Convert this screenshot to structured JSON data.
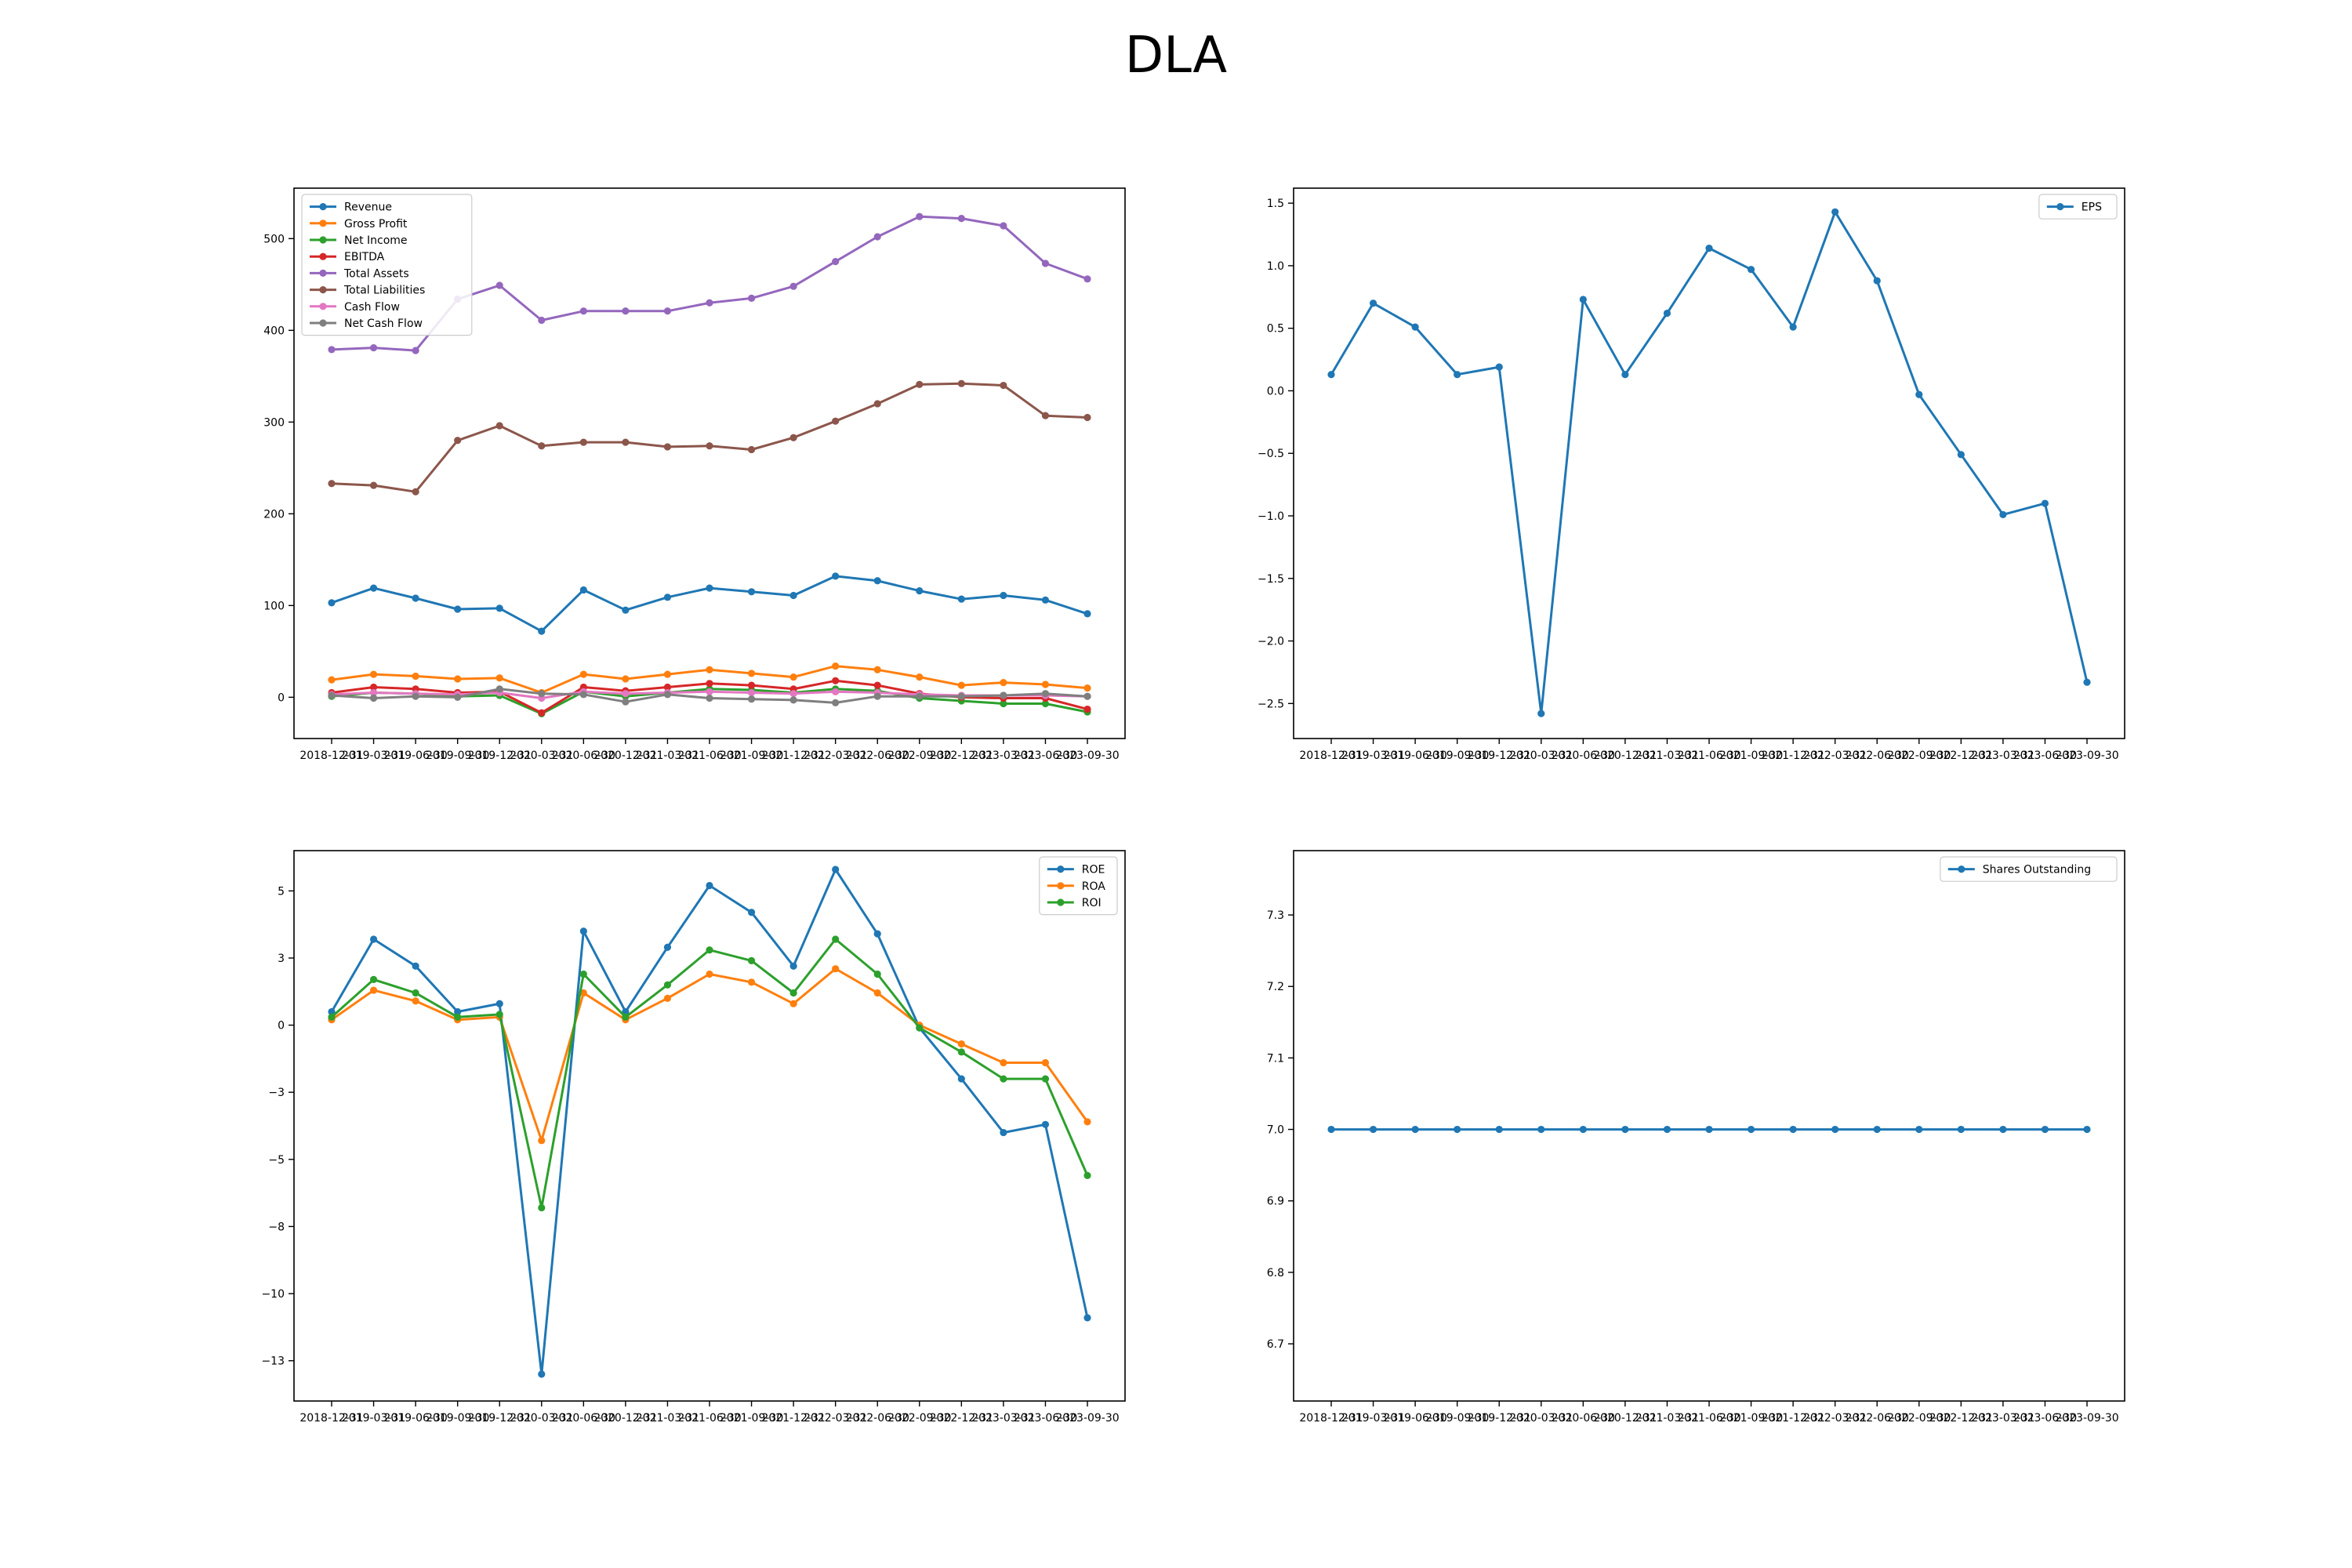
{
  "page_title": "DLA",
  "dates": [
    "2018-12-31",
    "2019-03-31",
    "2019-06-30",
    "2019-09-30",
    "2019-12-31",
    "2020-03-31",
    "2020-06-30",
    "2020-12-31",
    "2021-03-31",
    "2021-06-30",
    "2021-09-30",
    "2021-12-31",
    "2022-03-31",
    "2022-06-30",
    "2022-09-30",
    "2022-12-31",
    "2023-03-31",
    "2023-06-30",
    "2023-09-30"
  ],
  "chart_data": [
    {
      "type": "line",
      "ylim": [
        -45,
        555
      ],
      "yticks": [
        0,
        100,
        200,
        300,
        400,
        500
      ],
      "legend": "upper left",
      "series": [
        {
          "name": "Revenue",
          "color": "#1f77b4",
          "values": [
            103,
            119,
            108,
            96,
            97,
            72,
            117,
            95,
            109,
            119,
            115,
            111,
            132,
            127,
            116,
            107,
            111,
            106,
            91
          ]
        },
        {
          "name": "Gross Profit",
          "color": "#ff7f0e",
          "values": [
            19,
            25,
            23,
            20,
            21,
            5,
            25,
            20,
            25,
            30,
            26,
            22,
            34,
            30,
            22,
            13,
            16,
            14,
            10
          ]
        },
        {
          "name": "Net Income",
          "color": "#2ca02c",
          "values": [
            1,
            5,
            4,
            1,
            2,
            -18,
            6,
            1,
            5,
            9,
            8,
            5,
            9,
            7,
            -1,
            -4,
            -7,
            -7,
            -16
          ]
        },
        {
          "name": "EBITDA",
          "color": "#d62728",
          "values": [
            5,
            11,
            9,
            5,
            6,
            -17,
            11,
            7,
            11,
            15,
            13,
            9,
            18,
            13,
            4,
            0,
            -1,
            -1,
            -13
          ]
        },
        {
          "name": "Total Assets",
          "color": "#9467bd",
          "values": [
            379,
            381,
            378,
            434,
            449,
            411,
            421,
            421,
            421,
            430,
            435,
            448,
            475,
            502,
            524,
            522,
            514,
            473,
            456
          ]
        },
        {
          "name": "Total Liabilities",
          "color": "#8c564b",
          "values": [
            233,
            231,
            224,
            280,
            296,
            274,
            278,
            278,
            273,
            274,
            270,
            283,
            301,
            320,
            341,
            342,
            340,
            307,
            305
          ]
        },
        {
          "name": "Cash Flow",
          "color": "#e377c2",
          "values": [
            3,
            5,
            4,
            3,
            5,
            -1,
            6,
            4,
            5,
            6,
            5,
            4,
            6,
            5,
            3,
            2,
            2,
            2,
            1
          ]
        },
        {
          "name": "Net Cash Flow",
          "color": "#7f7f7f",
          "values": [
            2,
            -1,
            1,
            0,
            9,
            4,
            3,
            -5,
            3,
            -1,
            -2,
            -3,
            -6,
            1,
            1,
            1,
            2,
            4,
            1
          ]
        }
      ]
    },
    {
      "type": "line",
      "ylim": [
        -2.78,
        1.62
      ],
      "yticks": [
        -2.5,
        -2.0,
        -1.5,
        -1.0,
        -0.5,
        0.0,
        0.5,
        1.0,
        1.5
      ],
      "legend": "upper right",
      "series": [
        {
          "name": "EPS",
          "color": "#1f77b4",
          "values": [
            0.13,
            0.7,
            0.51,
            0.13,
            0.19,
            -2.58,
            0.73,
            0.13,
            0.62,
            1.14,
            0.97,
            0.51,
            1.43,
            0.88,
            -0.03,
            -0.51,
            -0.99,
            -0.9,
            -2.33
          ]
        }
      ]
    },
    {
      "type": "line",
      "ylim": [
        -14.0,
        6.5
      ],
      "yticks": [
        -12.5,
        -10.0,
        -7.5,
        -5.0,
        -2.5,
        0.0,
        2.5,
        5.0
      ],
      "legend": "upper right",
      "series": [
        {
          "name": "ROE",
          "color": "#1f77b4",
          "values": [
            0.5,
            3.2,
            2.2,
            0.5,
            0.8,
            -13.0,
            3.5,
            0.5,
            2.9,
            5.2,
            4.2,
            2.2,
            5.8,
            3.4,
            -0.1,
            -2.0,
            -4.0,
            -3.7,
            -10.9
          ]
        },
        {
          "name": "ROA",
          "color": "#ff7f0e",
          "values": [
            0.2,
            1.3,
            0.9,
            0.2,
            0.3,
            -4.3,
            1.2,
            0.2,
            1.0,
            1.9,
            1.6,
            0.8,
            2.1,
            1.2,
            0.0,
            -0.7,
            -1.4,
            -1.4,
            -3.6
          ]
        },
        {
          "name": "ROI",
          "color": "#2ca02c",
          "values": [
            0.3,
            1.7,
            1.2,
            0.3,
            0.4,
            -6.8,
            1.9,
            0.3,
            1.5,
            2.8,
            2.4,
            1.2,
            3.2,
            1.9,
            -0.1,
            -1.0,
            -2.0,
            -2.0,
            -5.6
          ]
        }
      ]
    },
    {
      "type": "line",
      "ylim": [
        6.62,
        7.39
      ],
      "yticks": [
        6.7,
        6.8,
        6.9,
        7.0,
        7.1,
        7.2,
        7.3
      ],
      "legend": "upper right",
      "series": [
        {
          "name": "Shares Outstanding",
          "color": "#1f77b4",
          "values": [
            7,
            7,
            7,
            7,
            7,
            7,
            7,
            7,
            7,
            7,
            7,
            7,
            7,
            7,
            7,
            7,
            7,
            7,
            7
          ]
        }
      ]
    }
  ]
}
